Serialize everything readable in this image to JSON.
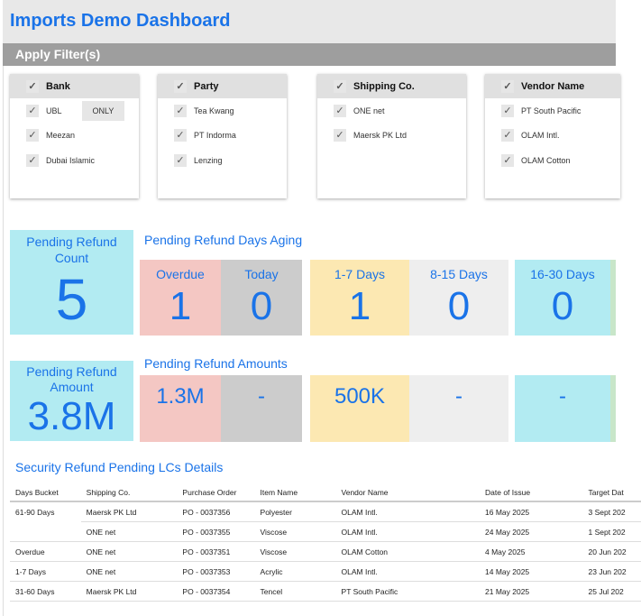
{
  "title": "Imports Demo Dashboard",
  "filters_label": "Apply Filter(s)",
  "filters": [
    {
      "name": "Bank",
      "items": [
        "UBL",
        "Meezan",
        "Dubai Islamic"
      ],
      "only_label": "ONLY"
    },
    {
      "name": "Party",
      "items": [
        "Tea Kwang",
        "PT Indorma",
        "Lenzing"
      ]
    },
    {
      "name": "Shipping Co.",
      "items": [
        "ONE net",
        "Maersk PK Ltd"
      ]
    },
    {
      "name": "Vendor Name",
      "items": [
        "PT South Pacific",
        "OLAM Intl.",
        "OLAM Cotton"
      ]
    }
  ],
  "count_kpi": {
    "label": "Pending Refund Count",
    "value": "5"
  },
  "aging_title": "Pending Refund Days Aging",
  "aging": [
    {
      "label": "Overdue",
      "value": "1",
      "color": "#f4c7c3"
    },
    {
      "label": "Today",
      "value": "0",
      "color": "#cccccc"
    },
    {
      "label": "1-7 Days",
      "value": "1",
      "color": "#fce8b2"
    },
    {
      "label": "8-15 Days",
      "value": "0",
      "color": "#eeeeee"
    },
    {
      "label": "16-30 Days",
      "value": "0",
      "color": "#b2ebf2"
    }
  ],
  "amount_kpi": {
    "label": "Pending Refund Amount",
    "value": "3.8M"
  },
  "amounts_title": "Pending Refund Amounts",
  "amounts": [
    "1.3M",
    "-",
    "500K",
    "-",
    "-"
  ],
  "table": {
    "title": "Security Refund Pending LCs Details",
    "headers": [
      "Days Bucket",
      "Shipping Co.",
      "Purchase Order",
      "Item Name",
      "Vendor Name",
      "Date of Issue",
      "Target Dat"
    ],
    "rows": [
      [
        "61-90 Days",
        "Maersk PK Ltd",
        "PO - 0037356",
        "Polyester",
        "OLAM Intl.",
        "16 May 2025",
        "3 Sept 202"
      ],
      [
        "",
        "ONE net",
        "PO - 0037355",
        "Viscose",
        "OLAM Intl.",
        "24 May 2025",
        "1 Sept 202"
      ],
      [
        "Overdue",
        "ONE net",
        "PO - 0037351",
        "Viscose",
        "OLAM Cotton",
        "4 May 2025",
        "20 Jun 202"
      ],
      [
        "1-7 Days",
        "ONE net",
        "PO - 0037353",
        "Acrylic",
        "OLAM Intl.",
        "14 May 2025",
        "23 Jun 202"
      ],
      [
        "31-60 Days",
        "Maersk PK Ltd",
        "PO - 0037354",
        "Tencel",
        "PT South Pacific",
        "21 May 2025",
        "25 Jul 202"
      ]
    ]
  }
}
